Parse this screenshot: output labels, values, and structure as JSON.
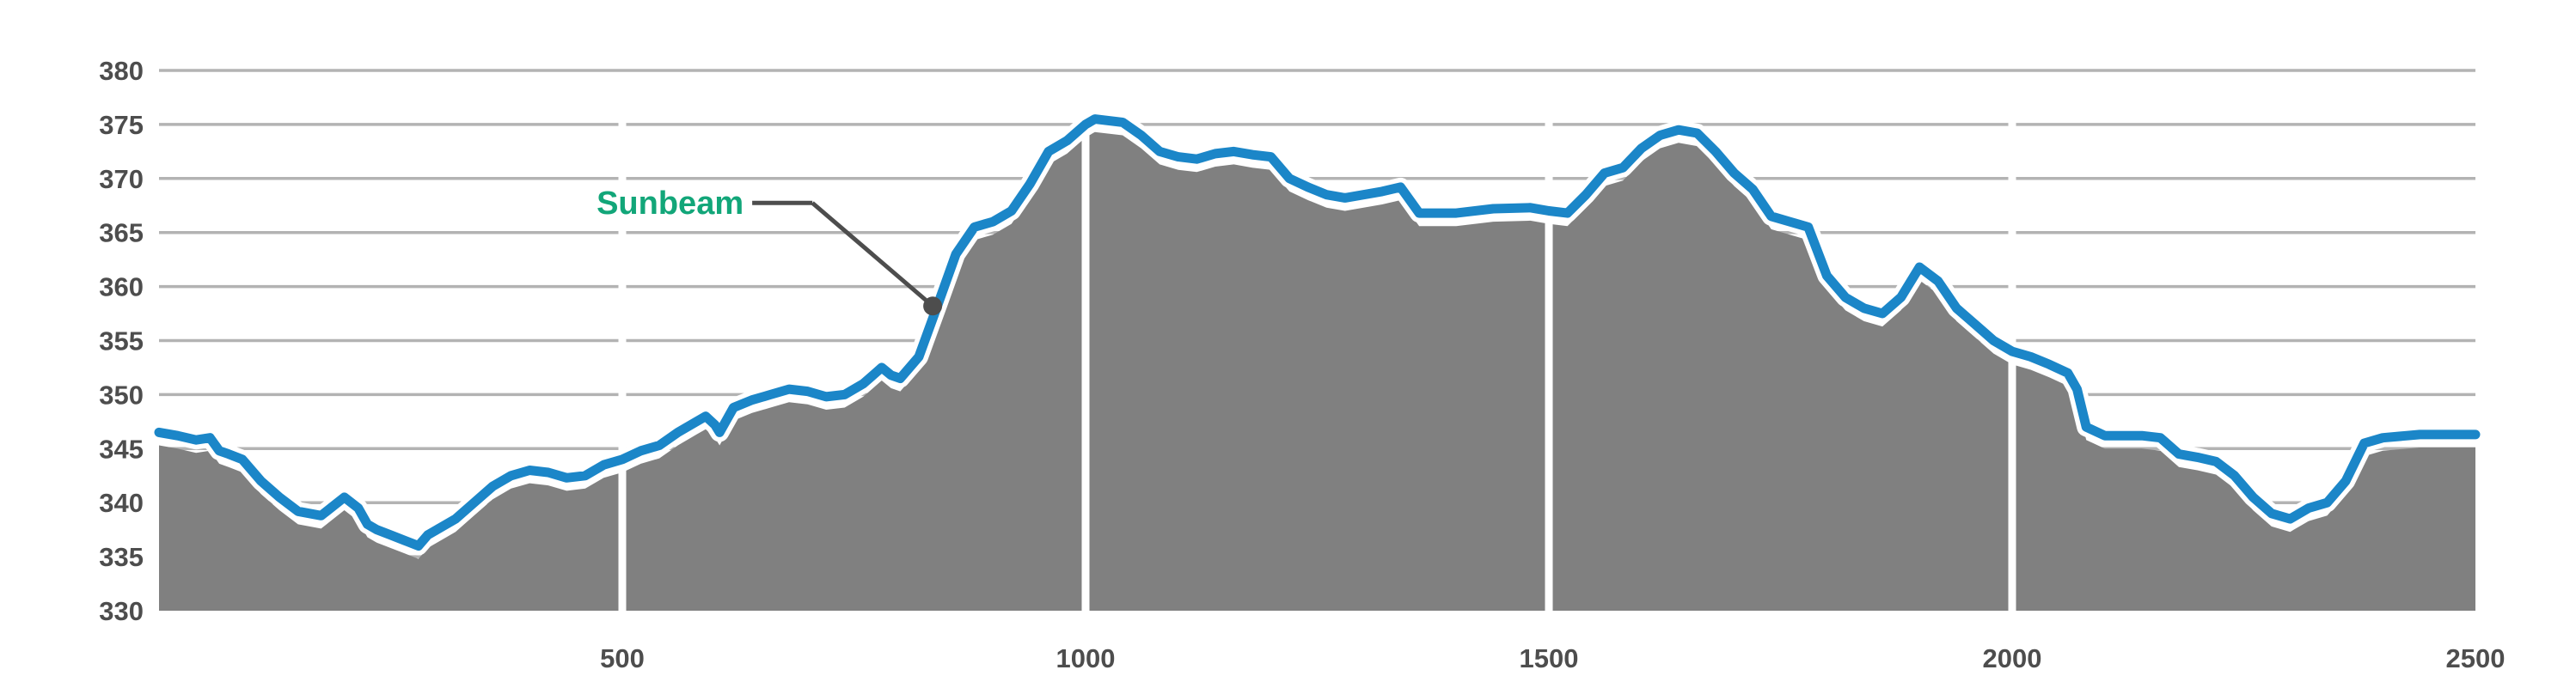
{
  "chart_data": {
    "type": "area",
    "title": "",
    "xlabel": "",
    "ylabel": "",
    "xlim": [
      0,
      2500
    ],
    "ylim": [
      330,
      380
    ],
    "grid": true,
    "y_ticks": [
      "330",
      "335",
      "340",
      "345",
      "350",
      "355",
      "360",
      "365",
      "370",
      "375",
      "380"
    ],
    "x_ticks": [
      "500",
      "1000",
      "1500",
      "2000",
      "2500"
    ],
    "colors": {
      "line": "#1b86c8",
      "area": "#808080",
      "grid": "#b3b3b3",
      "annotation": "#12a679",
      "leader": "#4d4d4d"
    },
    "annotation": {
      "text": "Sunbeam",
      "x": 835,
      "y": 358.2
    },
    "series": [
      {
        "x": [
          0,
          20,
          40,
          55,
          65,
          75,
          90,
          110,
          130,
          150,
          175,
          200,
          215,
          225,
          235,
          250,
          265,
          280,
          290,
          300,
          310,
          320,
          340,
          360,
          380,
          400,
          420,
          440,
          460,
          480,
          500,
          520,
          540,
          560,
          580,
          590,
          600,
          605,
          620,
          640,
          660,
          680,
          700,
          720,
          740,
          760,
          780,
          790,
          800,
          820,
          840,
          860,
          880,
          900,
          920,
          940,
          960,
          980,
          1000,
          1010,
          1040,
          1060,
          1080,
          1100,
          1120,
          1140,
          1160,
          1180,
          1200,
          1220,
          1240,
          1260,
          1280,
          1300,
          1320,
          1340,
          1360,
          1400,
          1440,
          1480,
          1500,
          1520,
          1540,
          1560,
          1580,
          1600,
          1620,
          1640,
          1660,
          1680,
          1700,
          1720,
          1740,
          1760,
          1780,
          1800,
          1820,
          1840,
          1860,
          1880,
          1900,
          1920,
          1940,
          1960,
          1980,
          2000,
          2020,
          2040,
          2060,
          2070,
          2080,
          2100,
          2140,
          2160,
          2180,
          2200,
          2220,
          2240,
          2260,
          2280,
          2300,
          2320,
          2340,
          2360,
          2380,
          2400,
          2440,
          2500
        ],
        "y": [
          346.5,
          346.2,
          345.8,
          346.0,
          344.8,
          344.5,
          344.0,
          342.0,
          340.5,
          339.2,
          338.8,
          340.5,
          339.5,
          338.0,
          337.5,
          337.0,
          336.5,
          336.0,
          337.0,
          337.5,
          338.0,
          338.5,
          340.0,
          341.5,
          342.5,
          343.0,
          342.8,
          342.3,
          342.5,
          343.5,
          344.0,
          344.8,
          345.3,
          346.5,
          347.5,
          348.0,
          347.2,
          346.5,
          348.8,
          349.5,
          350.0,
          350.5,
          350.3,
          349.8,
          350.0,
          351.0,
          352.5,
          351.8,
          351.5,
          353.5,
          358.2,
          363.0,
          365.5,
          366.0,
          367.0,
          369.5,
          372.5,
          373.5,
          375.0,
          375.5,
          375.2,
          374.0,
          372.5,
          372.0,
          371.8,
          372.3,
          372.5,
          372.2,
          372.0,
          370.0,
          369.2,
          368.5,
          368.2,
          368.5,
          368.8,
          369.2,
          366.8,
          366.8,
          367.2,
          367.3,
          367.0,
          366.8,
          368.5,
          370.5,
          371.0,
          372.8,
          374.0,
          374.5,
          374.2,
          372.5,
          370.5,
          369.0,
          366.5,
          366.0,
          365.5,
          361.0,
          359.0,
          358.0,
          357.5,
          359.0,
          361.8,
          360.5,
          358.0,
          356.5,
          355.0,
          354.0,
          353.5,
          352.8,
          352.0,
          350.5,
          347.0,
          346.2,
          346.2,
          346.0,
          344.5,
          344.2,
          343.8,
          342.5,
          340.5,
          339.0,
          338.5,
          339.5,
          340.0,
          342.0,
          345.5,
          346.0,
          346.3,
          346.3
        ]
      }
    ]
  }
}
